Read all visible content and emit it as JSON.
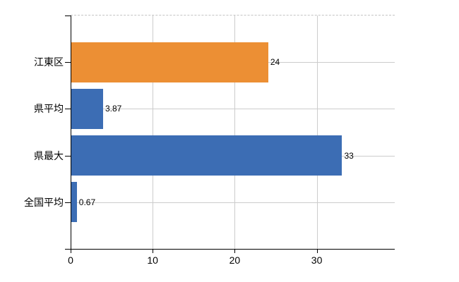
{
  "chart_data": {
    "type": "bar",
    "orientation": "horizontal",
    "title": "",
    "xlabel": "",
    "ylabel": "",
    "legend": "none",
    "grid": true,
    "categories": [
      "江東区",
      "県平均",
      "県最大",
      "全国平均"
    ],
    "values": [
      24,
      3.87,
      33,
      0.67
    ],
    "value_labels": [
      "24",
      "3.87",
      "33",
      "0.67"
    ],
    "bar_colors": [
      "#EC8F34",
      "#3C6DB4",
      "#3C6DB4",
      "#3C6DB4"
    ],
    "x_ticks": [
      0,
      10,
      20,
      30
    ],
    "x_tick_labels": [
      "0",
      "10",
      "20",
      "30"
    ],
    "xlim": [
      0,
      39.5
    ],
    "colors": {
      "orange_bar": "#EC8F34",
      "blue_bar": "#3C6DB4",
      "gridline": "#CCCCCC",
      "top_border": "#C4C4C4",
      "axis": "#000000",
      "text": "#000000"
    }
  }
}
